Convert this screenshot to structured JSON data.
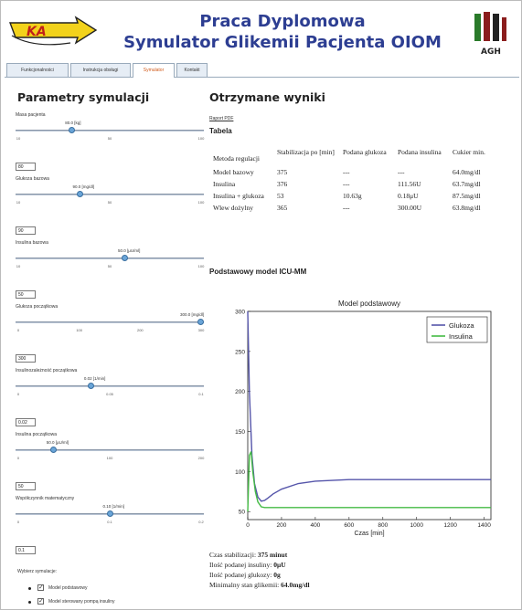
{
  "header": {
    "logo_text": "KA",
    "title_line1": "Praca Dyplomowa",
    "title_line2": "Symulator Glikemii Pacjenta OIOM",
    "agh_text": "AGH"
  },
  "tabs": [
    {
      "label": "Funkcjonalności",
      "active": false
    },
    {
      "label": "Instrukcja obsługi",
      "active": false
    },
    {
      "label": "Symulator",
      "active": true
    },
    {
      "label": "Kontakt",
      "active": false
    }
  ],
  "params": {
    "title": "Parametry symulacji",
    "sliders": [
      {
        "label": "Masa pacjenta",
        "value_text": "80.0 [kg]",
        "input": "80",
        "fraction": 0.3,
        "ticks": [
          "10",
          "50",
          "100"
        ]
      },
      {
        "label": "Glukoza bazowa",
        "value_text": "90.0 [mg/dl]",
        "input": "90",
        "fraction": 0.34,
        "ticks": [
          "10",
          "50",
          "100"
        ]
      },
      {
        "label": "Insulina bazowa",
        "value_text": "50.0 [μU/ml]",
        "input": "50",
        "fraction": 0.58,
        "ticks": [
          "10",
          "50",
          "100"
        ]
      },
      {
        "label": "Glukoza początkowa",
        "value_text": "300.0 [mg/dl]",
        "input": "300",
        "fraction": 1.0,
        "ticks": [
          "0",
          "100",
          "200",
          "300"
        ]
      },
      {
        "label": "Insulinozależność początkowa",
        "value_text": "0.02 [1/min]",
        "input": "0.02",
        "fraction": 0.4,
        "ticks": [
          "0",
          "0.05",
          "0.1"
        ]
      },
      {
        "label": "Insulina początkowa",
        "value_text": "50.0 [μU/ml]",
        "input": "50",
        "fraction": 0.2,
        "ticks": [
          "0",
          "100",
          "200"
        ]
      },
      {
        "label": "Współczynnik matematyczny",
        "value_text": "0.10 [1/min]",
        "input": "0.1",
        "fraction": 0.5,
        "ticks": [
          "0",
          "0.1",
          "0.2"
        ]
      }
    ],
    "options_label": "Wybierz symulacje:",
    "options": [
      {
        "label": "Model podstawowy",
        "checked": true
      },
      {
        "label": "Model sterowany pompą insuliny",
        "checked": true
      }
    ]
  },
  "results": {
    "title": "Otrzymane wyniki",
    "report_link": "Raport PDF",
    "table_title": "Tabela",
    "columns": [
      "Metoda regulacji",
      "Stabilizacja po [min]",
      "Podana glukoza",
      "Podana insulina",
      "Cukier min."
    ],
    "rows": [
      [
        "Model bazowy",
        "375",
        "---",
        "---",
        "64.0mg/dl"
      ],
      [
        "Insulina",
        "376",
        "---",
        "111.56U",
        "63.7mg/dl"
      ],
      [
        "Insulina + glukoza",
        "53",
        "10.63g",
        "0.18μU",
        "87.5mg/dl"
      ],
      [
        "Wlew dożylny",
        "365",
        "---",
        "300.00U",
        "63.8mg/dl"
      ]
    ],
    "model_title": "Podstawowy model ICU-MM",
    "summary": [
      {
        "label": "Czas stabilizacji:",
        "value": "375 minut"
      },
      {
        "label": "Ilość podanej insuliny:",
        "value": "0μU"
      },
      {
        "label": "Ilość podanej glukozy:",
        "value": "0g"
      },
      {
        "label": "Minimalny stan glikemii:",
        "value": "64.0mg/dl"
      }
    ]
  },
  "chart_data": {
    "type": "line",
    "title": "Model podstawowy",
    "xlabel": "Czas [min]",
    "ylabel": "",
    "xlim": [
      0,
      1440
    ],
    "ylim": [
      40,
      300
    ],
    "xticks": [
      0,
      200,
      400,
      600,
      800,
      1000,
      1200,
      1400
    ],
    "yticks": [
      50,
      100,
      150,
      200,
      250,
      300
    ],
    "legend": "top-right",
    "grid": false,
    "series": [
      {
        "name": "Glukoza",
        "color": "#5555aa",
        "x": [
          0,
          10,
          25,
          40,
          60,
          80,
          100,
          120,
          150,
          200,
          300,
          400,
          600,
          800,
          1000,
          1200,
          1440
        ],
        "y": [
          300,
          200,
          120,
          85,
          68,
          63,
          64,
          67,
          72,
          78,
          85,
          88,
          90,
          90,
          90,
          90,
          90
        ]
      },
      {
        "name": "Insulina",
        "color": "#44bb44",
        "x": [
          0,
          10,
          20,
          30,
          45,
          60,
          80,
          100,
          150,
          300,
          600,
          1000,
          1440
        ],
        "y": [
          50,
          120,
          125,
          100,
          75,
          62,
          56,
          55,
          55,
          55,
          55,
          55,
          55
        ]
      }
    ]
  }
}
